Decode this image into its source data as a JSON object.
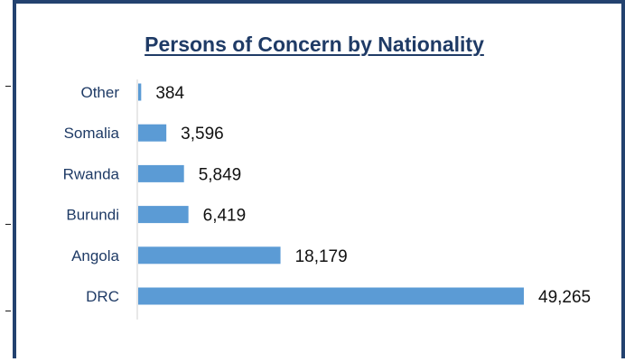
{
  "chart_data": {
    "type": "bar",
    "orientation": "horizontal",
    "title": "Persons of Concern by Nationality",
    "xlabel": "",
    "ylabel": "",
    "categories": [
      "Other",
      "Somalia",
      "Rwanda",
      "Burundi",
      "Angola",
      "DRC"
    ],
    "values": [
      384,
      3596,
      5849,
      6419,
      18179,
      49265
    ],
    "value_labels": [
      "384",
      "3,596",
      "5,849",
      "6,419",
      "18,179",
      "49,265"
    ],
    "xlim": [
      0,
      49265
    ],
    "grid": false,
    "legend": "none",
    "colors": {
      "bar": "#5b9bd5",
      "title": "#1f3b66",
      "category_text": "#1f3b66",
      "value_text": "#111111",
      "axis": "#d0d0d0",
      "frame": "#23426f"
    }
  }
}
